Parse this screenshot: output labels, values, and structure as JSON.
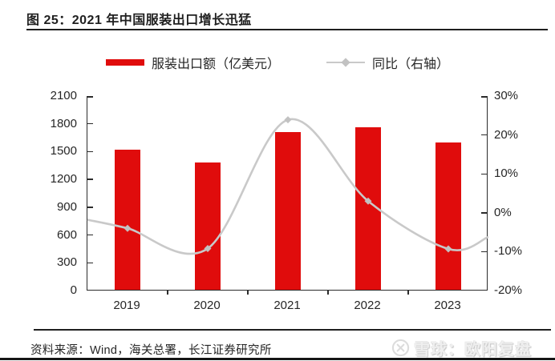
{
  "title": "图 25：2021 年中国服装出口增长迅猛",
  "legend": {
    "bar_label": "服装出口额（亿美元）",
    "line_label": "同比（右轴）"
  },
  "chart_data": {
    "type": "bar+line",
    "title": "2021 年中国服装出口增长迅猛",
    "categories": [
      "2019",
      "2020",
      "2021",
      "2022",
      "2023"
    ],
    "series": [
      {
        "name": "服装出口额（亿美元）",
        "type": "bar",
        "axis": "left",
        "unit": "亿美元",
        "values": [
          1514,
          1374,
          1703,
          1754,
          1591
        ]
      },
      {
        "name": "同比（右轴）",
        "type": "line",
        "axis": "right",
        "unit": "%",
        "values": [
          -4.0,
          -9.2,
          23.9,
          3.0,
          -9.3
        ],
        "edge_values": [
          -1.8,
          -6.2
        ]
      }
    ],
    "left_axis": {
      "min": 0,
      "max": 2100,
      "step": 300,
      "tick_labels": [
        "2100",
        "1800",
        "1500",
        "1200",
        "900",
        "600",
        "300",
        "0"
      ]
    },
    "right_axis": {
      "min": -20,
      "max": 30,
      "step": 10,
      "tick_labels": [
        "30%",
        "20%",
        "10%",
        "0%",
        "-10%",
        "-20%"
      ]
    },
    "grid": false,
    "legend_position": "top-center"
  },
  "footer": {
    "source": "资料来源：Wind，海关总署，长江证券研究所"
  },
  "watermark": {
    "text": "雪球：欧阳复盘"
  },
  "colors": {
    "bar_red": "#e00c0c",
    "line_gray": "#c9c9c9",
    "marker_gray": "#c2c2c2",
    "axis": "#2b2b2b"
  }
}
